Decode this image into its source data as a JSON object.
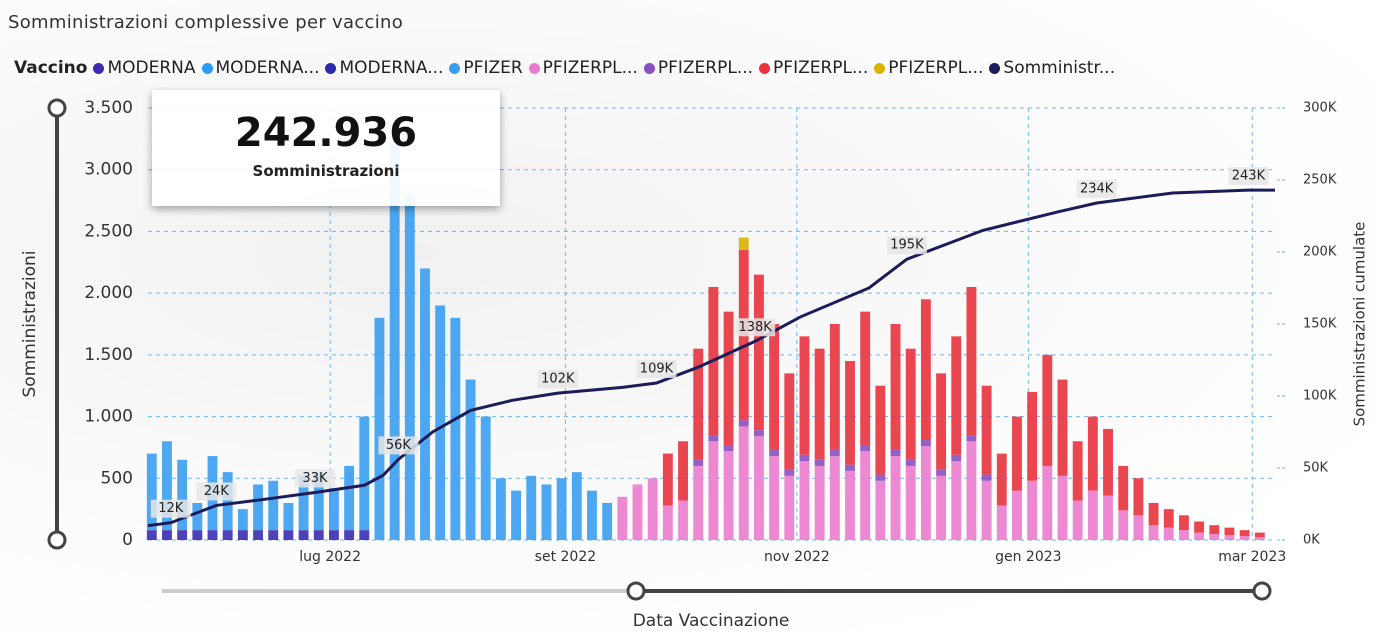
{
  "title": "Somministrazioni complessive per vaccino",
  "kpi": {
    "value": "242.936",
    "label": "Somministrazioni"
  },
  "chart_data": {
    "type": "bar",
    "stacked": true,
    "legend_title": "Vaccino",
    "y_label": "Somministrazioni",
    "y2_label": "Somministrazioni cumulate",
    "x_label": "Data Vaccinazione",
    "grid": true,
    "xlim": [
      0,
      297
    ],
    "xticks": [
      {
        "value": 48,
        "label": "lug 2022"
      },
      {
        "value": 110,
        "label": "set 2022"
      },
      {
        "value": 171,
        "label": "nov 2022"
      },
      {
        "value": 232,
        "label": "gen 2023"
      },
      {
        "value": 291,
        "label": "mar 2023"
      }
    ],
    "ylim": [
      0,
      3500
    ],
    "yticks": [
      0,
      500,
      {
        "value": 1000,
        "label": "1.000"
      },
      {
        "value": 1500,
        "label": "1.500"
      },
      {
        "value": 2000,
        "label": "2.000"
      },
      {
        "value": 2500,
        "label": "2.500"
      },
      {
        "value": 3000,
        "label": "3.000"
      },
      {
        "value": 3500,
        "label": "3.500"
      }
    ],
    "y2lim": [
      0,
      300000
    ],
    "y2ticks": [
      {
        "value": 0,
        "label": "0K"
      },
      {
        "value": 50000,
        "label": "50K"
      },
      {
        "value": 100000,
        "label": "100K"
      },
      {
        "value": 150000,
        "label": "150K"
      },
      {
        "value": 200000,
        "label": "200K"
      },
      {
        "value": 250000,
        "label": "250K"
      },
      {
        "value": 300000,
        "label": "300K"
      }
    ],
    "x": [
      1,
      5,
      9,
      13,
      17,
      21,
      25,
      29,
      33,
      37,
      41,
      45,
      49,
      53,
      57,
      61,
      65,
      69,
      73,
      77,
      81,
      85,
      89,
      93,
      97,
      101,
      105,
      109,
      113,
      117,
      121,
      125,
      129,
      133,
      137,
      141,
      145,
      149,
      153,
      157,
      161,
      165,
      169,
      173,
      177,
      181,
      185,
      189,
      193,
      197,
      201,
      205,
      209,
      213,
      217,
      221,
      225,
      229,
      233,
      237,
      241,
      245,
      249,
      253,
      257,
      261,
      265,
      269,
      273,
      277,
      281,
      285,
      289,
      293
    ],
    "series": [
      {
        "name": "MODERNA",
        "color": "#3a2bb0",
        "values": [
          80,
          80,
          80,
          80,
          80,
          80,
          80,
          80,
          80,
          80,
          80,
          80,
          80,
          80,
          80,
          0,
          0,
          0,
          0,
          0,
          0,
          0,
          0,
          0,
          0,
          0,
          0,
          0,
          0,
          0,
          0,
          0,
          0,
          0,
          0,
          0,
          0,
          0,
          0,
          0,
          0,
          0,
          0,
          0,
          0,
          0,
          0,
          0,
          0,
          0,
          0,
          0,
          0,
          0,
          0,
          0,
          0,
          0,
          0,
          0,
          0,
          0,
          0,
          0,
          0,
          0,
          0,
          0,
          0,
          0,
          0,
          0,
          0,
          0
        ]
      },
      {
        "name": "MODERNA...",
        "color": "#2b9af3",
        "values": [
          0,
          0,
          0,
          0,
          0,
          0,
          0,
          0,
          0,
          0,
          0,
          0,
          0,
          0,
          0,
          0,
          0,
          0,
          0,
          0,
          0,
          0,
          0,
          0,
          0,
          0,
          0,
          0,
          0,
          0,
          0,
          0,
          0,
          0,
          0,
          0,
          0,
          0,
          0,
          0,
          0,
          0,
          0,
          0,
          0,
          0,
          0,
          0,
          0,
          0,
          0,
          0,
          0,
          0,
          0,
          0,
          0,
          0,
          0,
          0,
          0,
          0,
          0,
          0,
          0,
          0,
          0,
          0,
          0,
          0,
          0,
          0,
          0,
          0
        ]
      },
      {
        "name": "MODERNA...",
        "color": "#2a2aa8",
        "values": [
          0,
          0,
          0,
          0,
          0,
          0,
          0,
          0,
          0,
          0,
          0,
          0,
          0,
          0,
          0,
          0,
          0,
          0,
          0,
          0,
          0,
          0,
          0,
          0,
          0,
          0,
          0,
          0,
          0,
          0,
          0,
          0,
          0,
          0,
          0,
          0,
          0,
          0,
          0,
          0,
          0,
          0,
          0,
          0,
          0,
          0,
          0,
          0,
          0,
          0,
          0,
          0,
          0,
          0,
          0,
          0,
          0,
          0,
          0,
          0,
          0,
          0,
          0,
          0,
          0,
          0,
          0,
          0,
          0,
          0,
          0,
          0,
          0,
          0
        ]
      },
      {
        "name": "PFIZER",
        "color": "#3a9ef0",
        "values": [
          620,
          720,
          570,
          220,
          600,
          470,
          170,
          370,
          400,
          220,
          440,
          470,
          340,
          520,
          920,
          1800,
          3200,
          2800,
          2200,
          1900,
          1800,
          1300,
          1000,
          500,
          400,
          520,
          450,
          500,
          550,
          400,
          300,
          0,
          0,
          0,
          0,
          0,
          0,
          0,
          0,
          0,
          0,
          0,
          0,
          0,
          0,
          0,
          0,
          0,
          0,
          0,
          0,
          0,
          0,
          0,
          0,
          0,
          0,
          0,
          0,
          0,
          0,
          0,
          0,
          0,
          0,
          0,
          0,
          0,
          0,
          0,
          0,
          0,
          0,
          0
        ]
      },
      {
        "name": "PFIZERPL...",
        "color": "#ea7ccd",
        "values": [
          0,
          0,
          0,
          0,
          0,
          0,
          0,
          0,
          0,
          0,
          0,
          0,
          0,
          0,
          0,
          0,
          0,
          0,
          0,
          0,
          0,
          0,
          0,
          0,
          0,
          0,
          0,
          0,
          0,
          0,
          0,
          350,
          450,
          500,
          280,
          320,
          600,
          800,
          720,
          920,
          840,
          680,
          520,
          640,
          600,
          680,
          560,
          720,
          480,
          680,
          600,
          760,
          520,
          640,
          800,
          480,
          280,
          400,
          480,
          600,
          520,
          320,
          400,
          360,
          240,
          200,
          120,
          100,
          80,
          60,
          48,
          40,
          32,
          24
        ]
      },
      {
        "name": "PFIZERPL...",
        "color": "#8a4fc0",
        "values": [
          0,
          0,
          0,
          0,
          0,
          0,
          0,
          0,
          0,
          0,
          0,
          0,
          0,
          0,
          0,
          0,
          0,
          0,
          0,
          0,
          0,
          0,
          0,
          0,
          0,
          0,
          0,
          0,
          0,
          0,
          0,
          0,
          0,
          0,
          0,
          0,
          50,
          50,
          50,
          50,
          50,
          50,
          50,
          50,
          50,
          50,
          50,
          50,
          50,
          50,
          50,
          50,
          50,
          50,
          50,
          50,
          0,
          0,
          0,
          0,
          0,
          0,
          0,
          0,
          0,
          0,
          0,
          0,
          0,
          0,
          0,
          0,
          0,
          0
        ]
      },
      {
        "name": "PFIZERPL...",
        "color": "#e8323c",
        "values": [
          0,
          0,
          0,
          0,
          0,
          0,
          0,
          0,
          0,
          0,
          0,
          0,
          0,
          0,
          0,
          0,
          0,
          0,
          0,
          0,
          0,
          0,
          0,
          0,
          0,
          0,
          0,
          0,
          0,
          0,
          0,
          0,
          0,
          0,
          420,
          480,
          900,
          1200,
          1080,
          1380,
          1260,
          1020,
          780,
          960,
          900,
          1020,
          840,
          1080,
          720,
          1020,
          900,
          1140,
          780,
          960,
          1200,
          720,
          420,
          600,
          720,
          900,
          780,
          480,
          600,
          540,
          360,
          300,
          180,
          150,
          120,
          90,
          72,
          60,
          48,
          36
        ]
      },
      {
        "name": "PFIZERPL...",
        "color": "#d9b300",
        "values": [
          0,
          0,
          0,
          0,
          0,
          0,
          0,
          0,
          0,
          0,
          0,
          0,
          0,
          0,
          0,
          0,
          0,
          0,
          0,
          0,
          0,
          0,
          0,
          0,
          0,
          0,
          0,
          0,
          0,
          0,
          0,
          0,
          0,
          0,
          0,
          0,
          0,
          0,
          0,
          100,
          0,
          0,
          0,
          0,
          0,
          0,
          0,
          0,
          0,
          0,
          0,
          0,
          0,
          0,
          0,
          0,
          0,
          0,
          0,
          0,
          0,
          0,
          0,
          0,
          0,
          0,
          0,
          0,
          0,
          0,
          0,
          0,
          0,
          0
        ]
      },
      {
        "name": "Somministr...",
        "color": "#1c1c5a",
        "axis": "y2",
        "type": "line",
        "x": [
          0,
          6,
          18,
          30,
          44,
          57,
          62,
          66,
          75,
          85,
          96,
          108,
          125,
          134,
          145,
          160,
          172,
          190,
          200,
          220,
          240,
          250,
          270,
          290,
          297
        ],
        "values": [
          10000,
          12000,
          24000,
          28000,
          33000,
          38000,
          45000,
          56000,
          75000,
          90000,
          97000,
          102000,
          106000,
          109000,
          120000,
          138000,
          155000,
          175000,
          195000,
          215000,
          228000,
          234000,
          241000,
          243000,
          243000
        ],
        "value_labels": [
          null,
          "12K",
          "24K",
          null,
          "33K",
          null,
          null,
          "56K",
          null,
          null,
          null,
          "102K",
          null,
          "109K",
          null,
          "138K",
          null,
          null,
          "195K",
          null,
          null,
          "234K",
          null,
          "243K",
          null
        ]
      }
    ]
  }
}
